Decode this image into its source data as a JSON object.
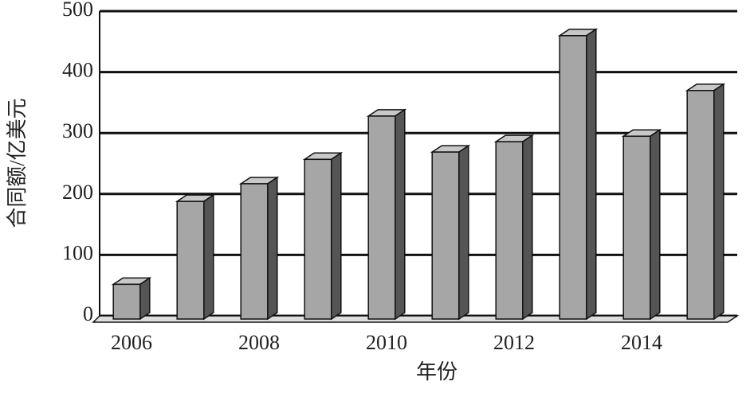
{
  "chart_data": {
    "type": "bar3d",
    "x_label": "年份",
    "y_label": "合同额/亿美元",
    "categories": [
      "2006",
      null,
      "2008",
      null,
      "2010",
      null,
      "2012",
      null,
      "2014",
      null
    ],
    "values": [
      57,
      193,
      222,
      262,
      333,
      274,
      291,
      465,
      300,
      375
    ],
    "color": "#a6a6a6",
    "ylim": [
      0,
      500
    ],
    "yticks": [
      0,
      100,
      200,
      300,
      400,
      500
    ],
    "grid": true
  }
}
